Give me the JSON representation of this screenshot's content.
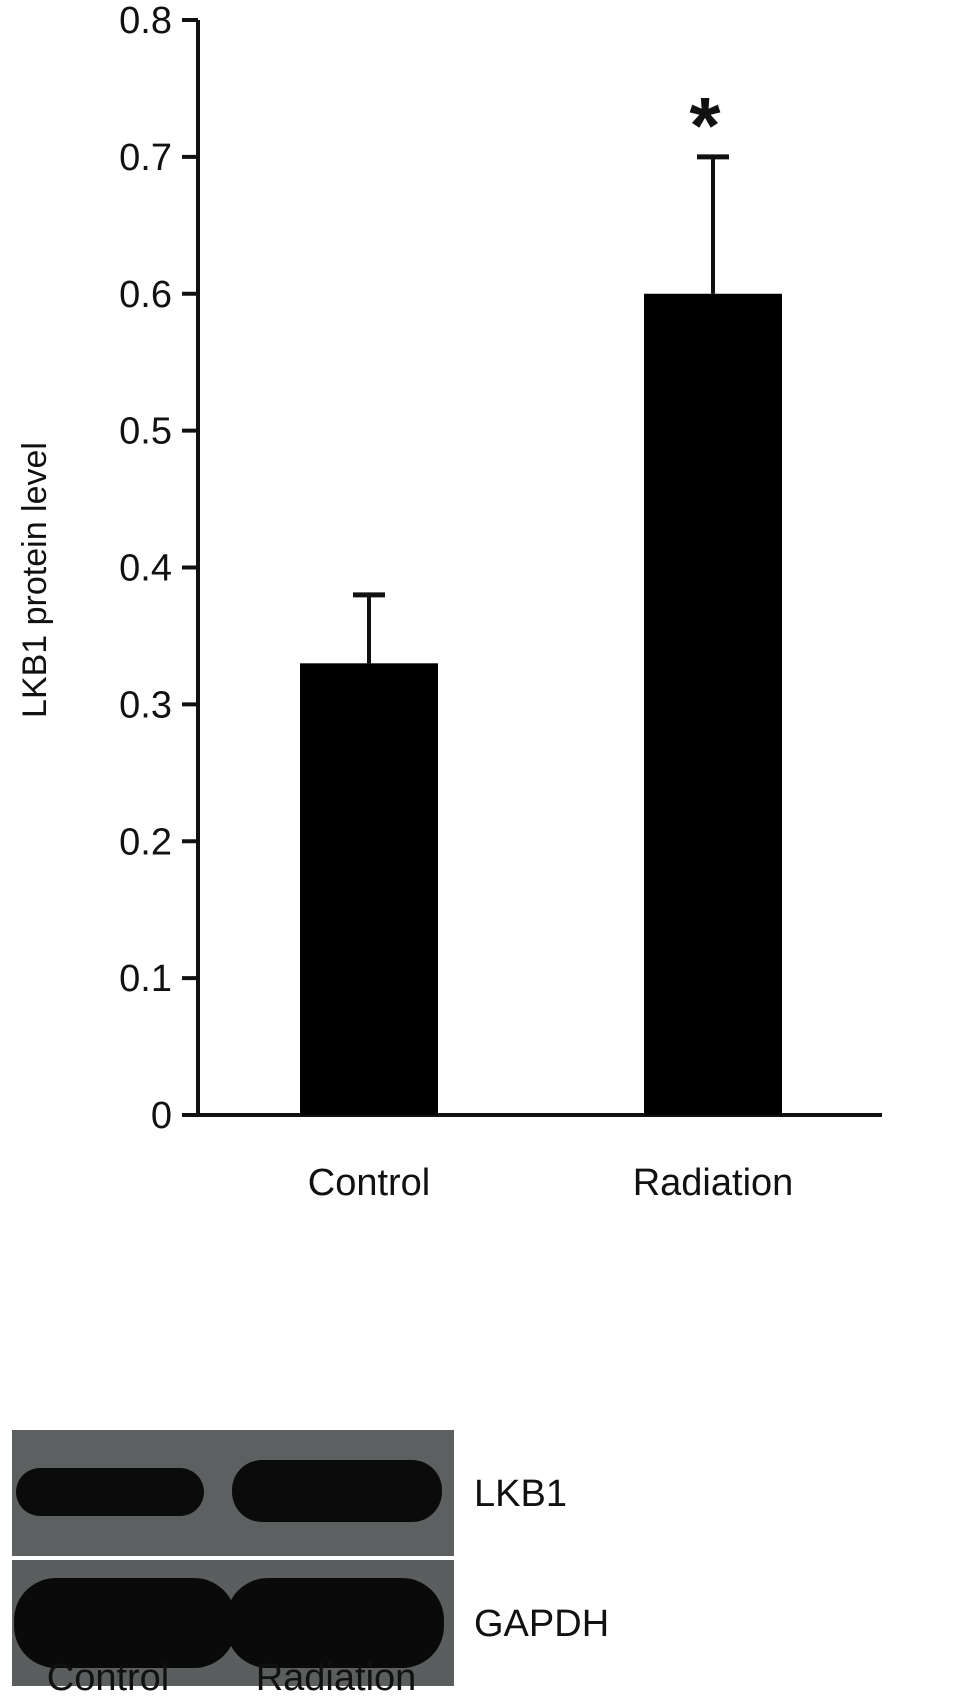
{
  "chart_data": {
    "type": "bar",
    "categories": [
      "Control",
      "Radiation"
    ],
    "values": [
      0.33,
      0.6
    ],
    "errors": [
      0.05,
      0.1
    ],
    "annotations": [
      "",
      "*"
    ],
    "xlabel": "",
    "ylabel": "LKB1 protein level",
    "ylim": [
      0,
      0.8
    ],
    "yticks": [
      "0",
      "0.1",
      "0.2",
      "0.3",
      "0.4",
      "0.5",
      "0.6",
      "0.7",
      "0.8"
    ],
    "grid": false,
    "bar_color": "#000000"
  },
  "blot": {
    "bands": [
      "LKB1",
      "GAPDH"
    ],
    "lanes": [
      "Control",
      "Radiation"
    ],
    "background_color": "#5d6060",
    "band_color": "#0b0b0b"
  }
}
